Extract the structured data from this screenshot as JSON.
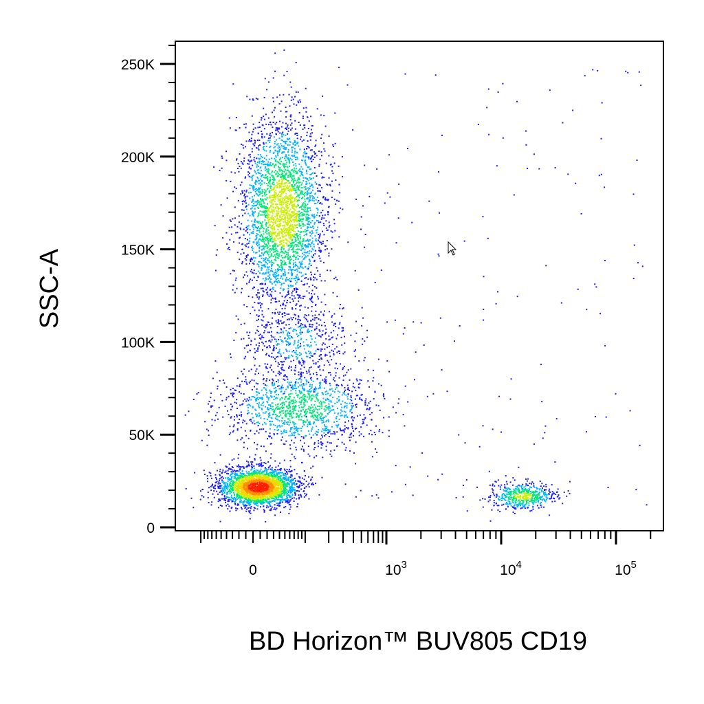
{
  "chart_data": {
    "type": "scatter",
    "subtype": "flow-cytometry-density-dot-plot",
    "xlabel": "BD Horizon™ BUV805 CD19",
    "ylabel": "SSC-A",
    "x_scale": "biexponential",
    "y_scale": "linear",
    "xlim": [
      -150,
      150000
    ],
    "ylim": [
      0,
      262144
    ],
    "x_ticks": [
      {
        "value": 0,
        "label": "0"
      },
      {
        "value": 1000,
        "label": "10",
        "sup": "3"
      },
      {
        "value": 10000,
        "label": "10",
        "sup": "4"
      },
      {
        "value": 100000,
        "label": "10",
        "sup": "5"
      }
    ],
    "y_ticks": [
      {
        "value": 0,
        "label": "0"
      },
      {
        "value": 50000,
        "label": "50K"
      },
      {
        "value": 100000,
        "label": "100K"
      },
      {
        "value": 150000,
        "label": "150K"
      },
      {
        "value": 200000,
        "label": "200K"
      },
      {
        "value": 250000,
        "label": "250K"
      }
    ],
    "color_scale": [
      "#1a1aff",
      "#00b4ff",
      "#00e678",
      "#c8f000",
      "#ffd200",
      "#ff8c00",
      "#ff1e00"
    ],
    "populations": [
      {
        "x_center": 0,
        "y_center": 22000,
        "peak_density": "high",
        "x_spread_decades": 0.15,
        "y_spread": 8000
      },
      {
        "x_center": 150,
        "y_center": 170000,
        "peak_density": "medium",
        "x_spread_decades": 0.25,
        "y_spread": 30000
      },
      {
        "x_center": 250,
        "y_center": 65000,
        "peak_density": "low",
        "x_spread_decades": 0.4,
        "y_spread": 15000
      },
      {
        "x_center": 12000,
        "y_center": 17000,
        "peak_density": "medium",
        "x_spread_decades": 0.12,
        "y_spread": 4000
      }
    ],
    "grid": false,
    "legend": "none"
  }
}
